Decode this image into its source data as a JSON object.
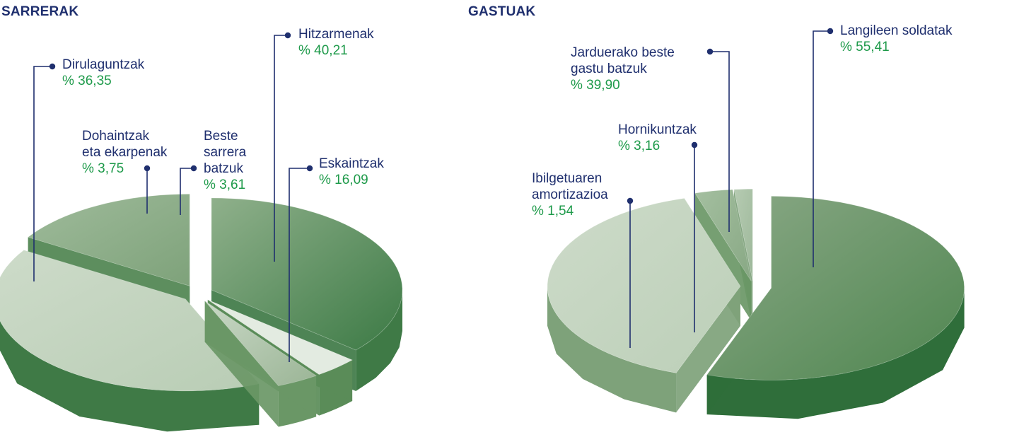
{
  "colors": {
    "navy": "#1f2f6e",
    "green_text": "#1e9a4a",
    "dark_green": "#3b7a44",
    "light_sage": "#bfd0bc",
    "mid_sage": "#93b08f",
    "pale": "#e3ebe1"
  },
  "chart_data": [
    {
      "type": "pie",
      "title": "SARRERAK",
      "categories": [
        "Dirulaguntzak",
        "Dohaintzak eta ekarpenak",
        "Beste sarrera batzuk",
        "Hitzarmenak",
        "Eskaintzak"
      ],
      "values": [
        36.35,
        3.75,
        3.61,
        40.21,
        16.09
      ],
      "labels": [
        {
          "name": "Dirulaguntzak",
          "pct": "% 36,35"
        },
        {
          "name": "Dohaintzak\neta ekarpenak",
          "pct": "% 3,75"
        },
        {
          "name": "Beste\nsarrera\nbatzuk",
          "pct": "% 3,61"
        },
        {
          "name": "Hitzarmenak",
          "pct": "% 40,21"
        },
        {
          "name": "Eskaintzak",
          "pct": "% 16,09"
        }
      ]
    },
    {
      "type": "pie",
      "title": "GASTUAK",
      "categories": [
        "Langileen soldatak",
        "Jarduerako beste gastu batzuk",
        "Hornikuntzak",
        "Ibilgetuaren amortizazioa"
      ],
      "values": [
        55.41,
        39.9,
        3.16,
        1.54
      ],
      "labels": [
        {
          "name": "Langileen soldatak",
          "pct": "% 55,41"
        },
        {
          "name": "Jarduerako beste\ngastu batzuk",
          "pct": "% 39,90"
        },
        {
          "name": "Hornikuntzak",
          "pct": "% 3,16"
        },
        {
          "name": "Ibilgetuaren\namortizazioa",
          "pct": "% 1,54"
        }
      ]
    }
  ]
}
